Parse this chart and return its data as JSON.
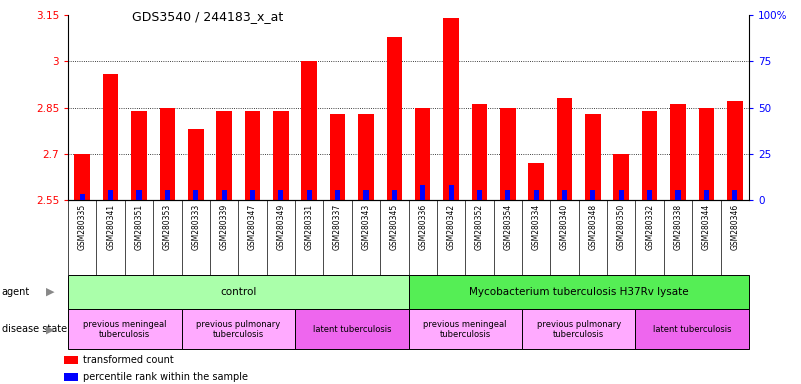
{
  "title": "GDS3540 / 244183_x_at",
  "samples": [
    "GSM280335",
    "GSM280341",
    "GSM280351",
    "GSM280353",
    "GSM280333",
    "GSM280339",
    "GSM280347",
    "GSM280349",
    "GSM280331",
    "GSM280337",
    "GSM280343",
    "GSM280345",
    "GSM280336",
    "GSM280342",
    "GSM280352",
    "GSM280354",
    "GSM280334",
    "GSM280340",
    "GSM280348",
    "GSM280350",
    "GSM280332",
    "GSM280338",
    "GSM280344",
    "GSM280346"
  ],
  "red_values": [
    2.7,
    2.96,
    2.84,
    2.85,
    2.78,
    2.84,
    2.84,
    2.84,
    3.0,
    2.83,
    2.83,
    3.08,
    2.85,
    3.14,
    2.86,
    2.85,
    2.67,
    2.88,
    2.83,
    2.7,
    2.84,
    2.86,
    2.85,
    2.87
  ],
  "blue_values": [
    3,
    5,
    5,
    5,
    5,
    5,
    5,
    5,
    5,
    5,
    5,
    5,
    8,
    8,
    5,
    5,
    5,
    5,
    5,
    5,
    5,
    5,
    5,
    5
  ],
  "ylim_left": [
    2.55,
    3.15
  ],
  "ylim_right": [
    0,
    100
  ],
  "yticks_left": [
    2.55,
    2.7,
    2.85,
    3.0,
    3.15
  ],
  "yticks_right": [
    0,
    25,
    50,
    75,
    100
  ],
  "ytick_labels_left": [
    "2.55",
    "2.7",
    "2.85",
    "3",
    "3.15"
  ],
  "ytick_labels_right": [
    "0",
    "25",
    "50",
    "75",
    "100%"
  ],
  "grid_values": [
    2.7,
    2.85,
    3.0
  ],
  "bar_color_red": "#FF0000",
  "bar_color_blue": "#0000FF",
  "agent_groups": [
    {
      "label": "control",
      "start": 0,
      "end": 11,
      "color": "#AAFFAA"
    },
    {
      "label": "Mycobacterium tuberculosis H37Rv lysate",
      "start": 12,
      "end": 23,
      "color": "#55EE55"
    }
  ],
  "disease_groups": [
    {
      "label": "previous meningeal\ntuberculosis",
      "start": 0,
      "end": 3,
      "color": "#FFAAFF"
    },
    {
      "label": "previous pulmonary\ntuberculosis",
      "start": 4,
      "end": 7,
      "color": "#FFAAFF"
    },
    {
      "label": "latent tuberculosis",
      "start": 8,
      "end": 11,
      "color": "#EE66EE"
    },
    {
      "label": "previous meningeal\ntuberculosis",
      "start": 12,
      "end": 15,
      "color": "#FFAAFF"
    },
    {
      "label": "previous pulmonary\ntuberculosis",
      "start": 16,
      "end": 19,
      "color": "#FFAAFF"
    },
    {
      "label": "latent tuberculosis",
      "start": 20,
      "end": 23,
      "color": "#EE66EE"
    }
  ],
  "legend_items": [
    {
      "label": "transformed count",
      "color": "#FF0000"
    },
    {
      "label": "percentile rank within the sample",
      "color": "#0000FF"
    }
  ],
  "background_color": "#FFFFFF",
  "xtick_bg": "#D8D8D8"
}
